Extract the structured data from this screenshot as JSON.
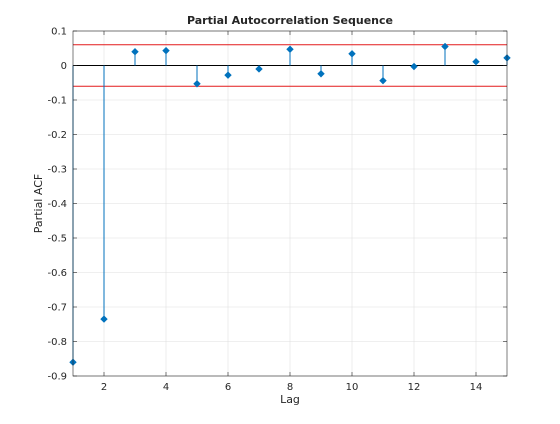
{
  "chart_data": {
    "type": "stem",
    "title": "Partial Autocorrelation Sequence",
    "xlabel": "Lag",
    "ylabel": "Partial ACF",
    "xlim": [
      1,
      15
    ],
    "ylim": [
      -0.9,
      0.1
    ],
    "grid": true,
    "x_ticks": [
      2,
      4,
      6,
      8,
      10,
      12,
      14
    ],
    "x_tick_labels": [
      "2",
      "4",
      "6",
      "8",
      "10",
      "12",
      "14"
    ],
    "y_ticks": [
      0.1,
      0,
      -0.1,
      -0.2,
      -0.3,
      -0.4,
      -0.5,
      -0.6,
      -0.7,
      -0.8,
      -0.9
    ],
    "y_tick_labels": [
      "0.1",
      "0",
      "-0.1",
      "-0.2",
      "-0.3",
      "-0.4",
      "-0.5",
      "-0.6",
      "-0.7",
      "-0.8",
      "-0.9"
    ],
    "series": [
      {
        "x": [
          1,
          2,
          3,
          4,
          5,
          6,
          7,
          8,
          9,
          10,
          11,
          12,
          13,
          14,
          15
        ],
        "values": [
          -0.86,
          -0.735,
          0.04,
          0.043,
          -0.053,
          -0.028,
          -0.01,
          0.047,
          -0.024,
          0.034,
          -0.044,
          -0.003,
          0.055,
          0.011,
          0.022
        ]
      }
    ],
    "confidence_bounds": [
      0.06,
      -0.06
    ],
    "colors": {
      "stem": "#0072BD",
      "bounds": "#E41A1C",
      "grid": "#DFDFDF",
      "axes": "#262626"
    }
  }
}
